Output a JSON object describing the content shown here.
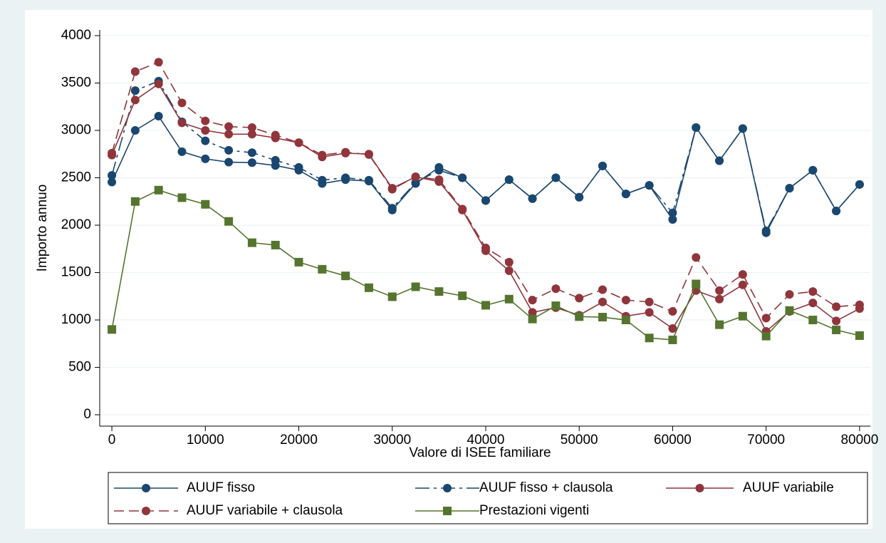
{
  "chart_data": {
    "type": "line",
    "x_label": "Valore di ISEE familiare",
    "y_label": "Importo annuo",
    "x": [
      0,
      2500,
      5000,
      7500,
      10000,
      12500,
      15000,
      17500,
      20000,
      22500,
      25000,
      27500,
      30000,
      32500,
      35000,
      37500,
      40000,
      42500,
      45000,
      47500,
      50000,
      52500,
      55000,
      57500,
      60000,
      62500,
      65000,
      67500,
      70000,
      72500,
      75000,
      77500,
      80000
    ],
    "series": [
      {
        "name": "AUUF fisso",
        "color": "#1a476f",
        "dash": "solid",
        "marker": "circle",
        "values": [
          2455,
          3000,
          3150,
          2775,
          2700,
          2665,
          2660,
          2630,
          2580,
          2440,
          2480,
          2465,
          2160,
          2440,
          2610,
          2500,
          2260,
          2480,
          2280,
          2500,
          2295,
          2625,
          2330,
          2420,
          2060,
          3030,
          2680,
          3020,
          1920,
          2390,
          2580,
          2150,
          2430
        ]
      },
      {
        "name": "AUUF fisso + clausola",
        "color": "#1a476f",
        "dash": "longdash-dot",
        "marker": "circle",
        "values": [
          2525,
          3420,
          3520,
          3090,
          2890,
          2790,
          2765,
          2685,
          2610,
          2475,
          2500,
          2475,
          2180,
          2450,
          2580,
          2500,
          2260,
          2480,
          2280,
          2500,
          2295,
          2625,
          2330,
          2420,
          2130,
          3030,
          2680,
          3020,
          1940,
          2390,
          2580,
          2150,
          2430
        ]
      },
      {
        "name": "AUUF variabile",
        "color": "#90353b",
        "dash": "solid",
        "marker": "circle",
        "values": [
          2740,
          3320,
          3490,
          3080,
          3000,
          2960,
          2960,
          2920,
          2870,
          2720,
          2760,
          2750,
          2390,
          2510,
          2460,
          2160,
          1730,
          1520,
          1080,
          1130,
          1050,
          1190,
          1040,
          1080,
          910,
          1310,
          1220,
          1370,
          880,
          1090,
          1180,
          990,
          1120
        ]
      },
      {
        "name": "AUUF variabile + clausola",
        "color": "#90353b",
        "dash": "dash",
        "marker": "circle",
        "values": [
          2760,
          3620,
          3720,
          3290,
          3100,
          3040,
          3030,
          2950,
          2870,
          2740,
          2770,
          2745,
          2380,
          2510,
          2480,
          2170,
          1760,
          1610,
          1210,
          1330,
          1230,
          1320,
          1210,
          1190,
          1090,
          1660,
          1310,
          1480,
          1020,
          1270,
          1300,
          1140,
          1160
        ]
      },
      {
        "name": "Prestazioni vigenti",
        "color": "#55752f",
        "dash": "solid",
        "marker": "square",
        "values": [
          900,
          2250,
          2370,
          2290,
          2220,
          2040,
          1815,
          1790,
          1610,
          1535,
          1465,
          1340,
          1245,
          1350,
          1300,
          1255,
          1155,
          1220,
          1010,
          1150,
          1035,
          1030,
          1000,
          810,
          790,
          1380,
          950,
          1040,
          830,
          1100,
          1000,
          895,
          835
        ]
      }
    ],
    "xlim": [
      -1300,
      81150
    ],
    "xticks": [
      0,
      10000,
      20000,
      30000,
      40000,
      50000,
      60000,
      70000,
      80000
    ],
    "ylim": [
      -120,
      4060
    ],
    "yticks": [
      0,
      500,
      1000,
      1500,
      2000,
      2500,
      3000,
      3500,
      4000
    ],
    "grid": true,
    "legend": "bottom"
  }
}
